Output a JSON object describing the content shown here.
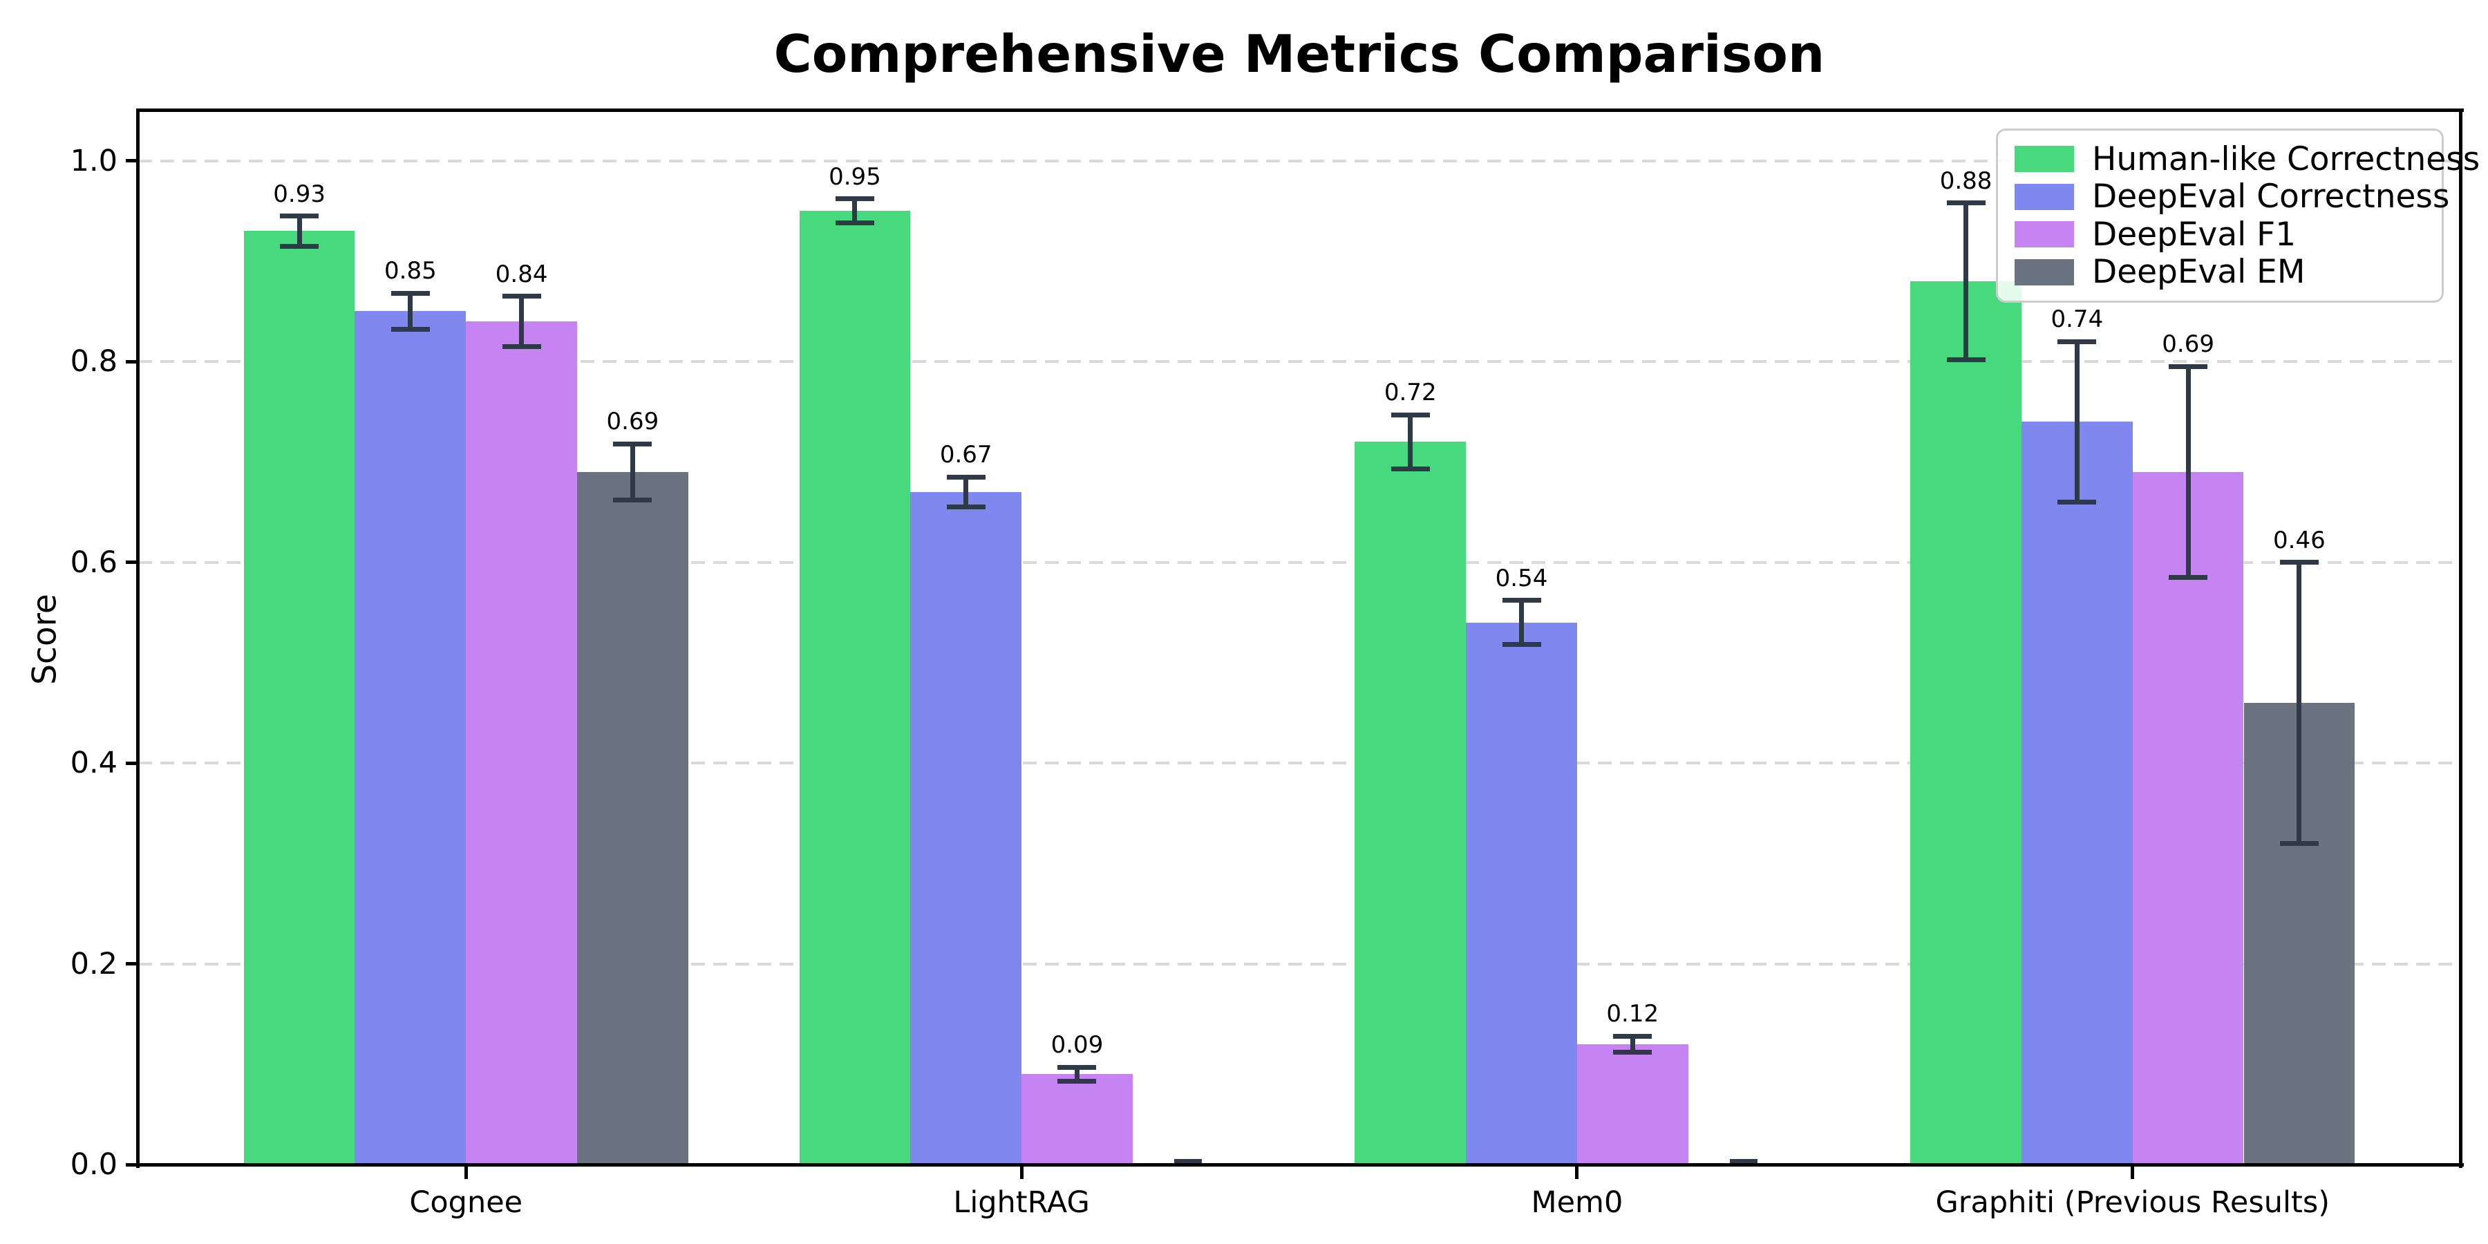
{
  "chart_data": {
    "type": "bar",
    "title": "Comprehensive Metrics Comparison",
    "ylabel": "Score",
    "xlabel": "",
    "categories": [
      "Cognee",
      "LightRAG",
      "Mem0",
      "Graphiti (Previous Results)"
    ],
    "series": [
      {
        "name": "Human-like Correctness",
        "color": "#48d97e",
        "values": [
          0.93,
          0.95,
          0.72,
          0.88
        ],
        "errors": [
          0.015,
          0.012,
          0.027,
          0.078
        ],
        "labels": [
          "0.93",
          "0.95",
          "0.72",
          "0.88"
        ]
      },
      {
        "name": "DeepEval Correctness",
        "color": "#7e88ee",
        "values": [
          0.85,
          0.67,
          0.54,
          0.74
        ],
        "errors": [
          0.018,
          0.015,
          0.022,
          0.08
        ],
        "labels": [
          "0.85",
          "0.67",
          "0.54",
          "0.74"
        ]
      },
      {
        "name": "DeepEval F1",
        "color": "#c684f3",
        "values": [
          0.84,
          0.09,
          0.12,
          0.69
        ],
        "errors": [
          0.025,
          0.007,
          0.008,
          0.105
        ],
        "labels": [
          "0.84",
          "0.09",
          "0.12",
          "0.69"
        ]
      },
      {
        "name": "DeepEval EM",
        "color": "#6b7280",
        "values": [
          0.69,
          0.0,
          0.0,
          0.46
        ],
        "errors": [
          0.028,
          0.003,
          0.003,
          0.14
        ],
        "labels": [
          "0.69",
          "",
          "",
          "0.46"
        ]
      }
    ],
    "yticks": [
      "0.0",
      "0.2",
      "0.4",
      "0.6",
      "0.8",
      "1.0"
    ],
    "ylim": [
      0,
      1.05
    ],
    "xlim": [
      -0.59,
      3.59
    ],
    "bar_width_units": 0.2,
    "grid": "horizontal dashed",
    "grid_color": "#d9d9d9",
    "error_bar_color": "#2e3a48",
    "legend_position": "upper right"
  }
}
